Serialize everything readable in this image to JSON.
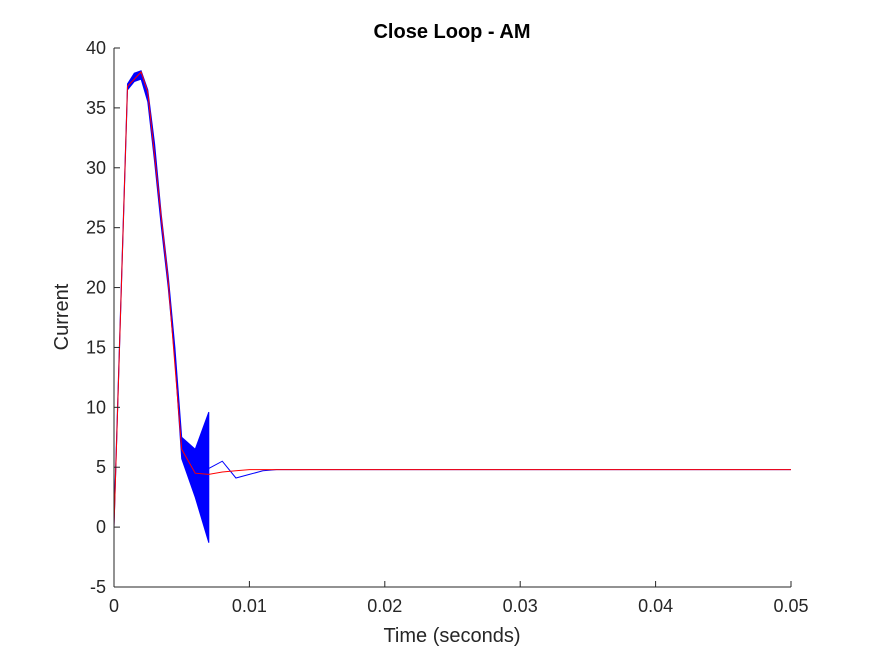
{
  "chart_data": {
    "type": "line",
    "title": "Close Loop - AM",
    "xlabel": "Time (seconds)",
    "ylabel": "Current",
    "xlim": [
      0,
      0.05
    ],
    "ylim": [
      -5,
      40
    ],
    "xticks": [
      0,
      0.01,
      0.02,
      0.03,
      0.04,
      0.05
    ],
    "xtick_labels": [
      "0",
      "0.01",
      "0.02",
      "0.03",
      "0.04",
      "0.05"
    ],
    "yticks": [
      -5,
      0,
      5,
      10,
      15,
      20,
      25,
      30,
      35,
      40
    ],
    "ytick_labels": [
      "-5",
      "0",
      "5",
      "10",
      "15",
      "20",
      "25",
      "30",
      "35",
      "40"
    ],
    "grid": false,
    "band": {
      "color": "#0000ff",
      "upper": [
        [
          0,
          0.5
        ],
        [
          0.001,
          37.0
        ],
        [
          0.0015,
          37.9
        ],
        [
          0.002,
          38.1
        ],
        [
          0.0025,
          36.5
        ],
        [
          0.003,
          32.0
        ],
        [
          0.0035,
          26.0
        ],
        [
          0.004,
          21.0
        ],
        [
          0.0045,
          15.0
        ],
        [
          0.005,
          7.5
        ],
        [
          0.006,
          6.5
        ],
        [
          0.007,
          9.6
        ]
      ],
      "lower": [
        [
          0.007,
          -1.3
        ],
        [
          0.006,
          2.5
        ],
        [
          0.005,
          5.7
        ],
        [
          0.0045,
          14.0
        ],
        [
          0.004,
          20.0
        ],
        [
          0.0035,
          25.0
        ],
        [
          0.003,
          30.5
        ],
        [
          0.0025,
          35.5
        ],
        [
          0.002,
          37.4
        ],
        [
          0.0015,
          37.2
        ],
        [
          0.001,
          36.5
        ],
        [
          0,
          0.0
        ]
      ]
    },
    "series": [
      {
        "color": "#0000ff",
        "x": [
          0.007,
          0.008,
          0.009,
          0.01,
          0.011,
          0.012,
          0.013,
          0.014,
          0.05
        ],
        "y": [
          4.9,
          5.5,
          4.1,
          4.4,
          4.7,
          4.8,
          4.8,
          4.8,
          4.8
        ]
      },
      {
        "color": "#ff0000",
        "x": [
          0,
          0.001,
          0.002,
          0.0025,
          0.003,
          0.004,
          0.005,
          0.006,
          0.007,
          0.008,
          0.009,
          0.01,
          0.012,
          0.015,
          0.05
        ],
        "y": [
          0,
          36.8,
          38.0,
          36.3,
          31.0,
          20.5,
          6.5,
          4.5,
          4.4,
          4.6,
          4.7,
          4.8,
          4.8,
          4.8,
          4.8
        ]
      }
    ]
  }
}
